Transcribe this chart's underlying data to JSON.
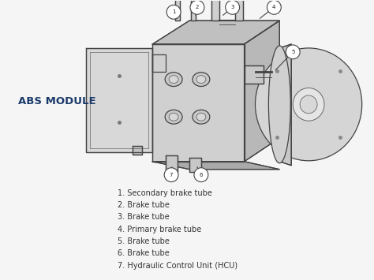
{
  "background_color": "#f5f5f5",
  "abs_label": "ABS MODULE",
  "abs_label_color": "#1a3a6b",
  "abs_label_fontsize": 9.5,
  "legend_items": [
    "1. Secondary brake tube",
    "2. Brake tube",
    "3. Brake tube",
    "4. Primary brake tube",
    "5. Brake tube",
    "6. Brake tube",
    "7. Hydraulic Control Unit (HCU)"
  ],
  "legend_fontsize": 7.0,
  "legend_color": "#333333",
  "line_color": "#444444",
  "fill_light": "#e0e0e0",
  "fill_mid": "#c8c8c8",
  "fill_dark": "#b0b0b0"
}
